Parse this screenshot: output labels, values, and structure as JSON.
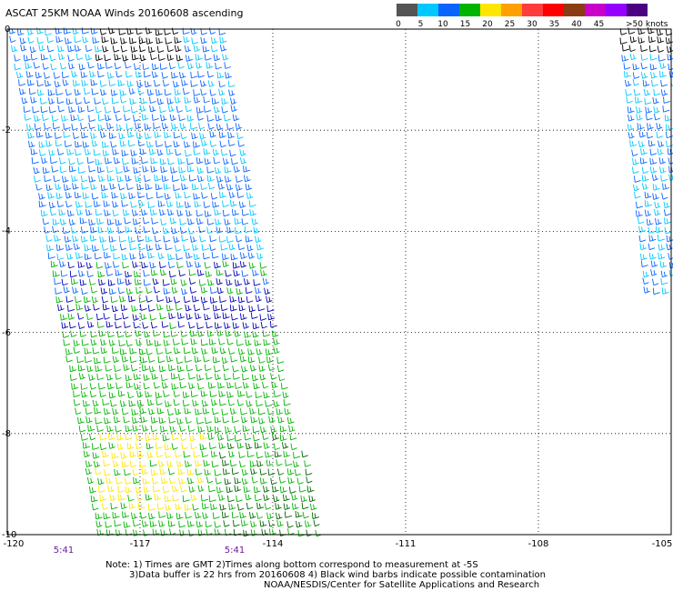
{
  "title": "ASCAT 25KM NOAA Winds 20160608 ascending",
  "legend": {
    "ticks": [
      "0",
      "5",
      "10",
      "15",
      "20",
      "25",
      "30",
      "35",
      "40",
      "45"
    ],
    "units": ">50 knots",
    "colors": [
      "#555555",
      "#00c8ff",
      "#0a64ff",
      "#00b400",
      "#ffe600",
      "#ffa000",
      "#ff3c3c",
      "#ff0000",
      "#8c3c14",
      "#c800c8",
      "#9600ff",
      "#4b0082"
    ]
  },
  "axes": {
    "y_ticks": [
      "0",
      "-2",
      "-4",
      "-6",
      "-8",
      "-10"
    ],
    "x_ticks": [
      "-120",
      "-117",
      "-114",
      "-111",
      "-108",
      "-105"
    ],
    "lon_range": [
      -120,
      -105
    ],
    "lat_range": [
      0,
      -10
    ]
  },
  "times": [
    "5:41",
    "5:41"
  ],
  "notes": [
    "Note: 1) Times are GMT 2)Times along bottom correspond to measurement at -5S",
    "3)Data buffer is 22 hrs from 20160608 4) Black wind barbs indicate possible contamination",
    "NOAA/NESDIS/Center for Satellite Applications and Research"
  ]
}
